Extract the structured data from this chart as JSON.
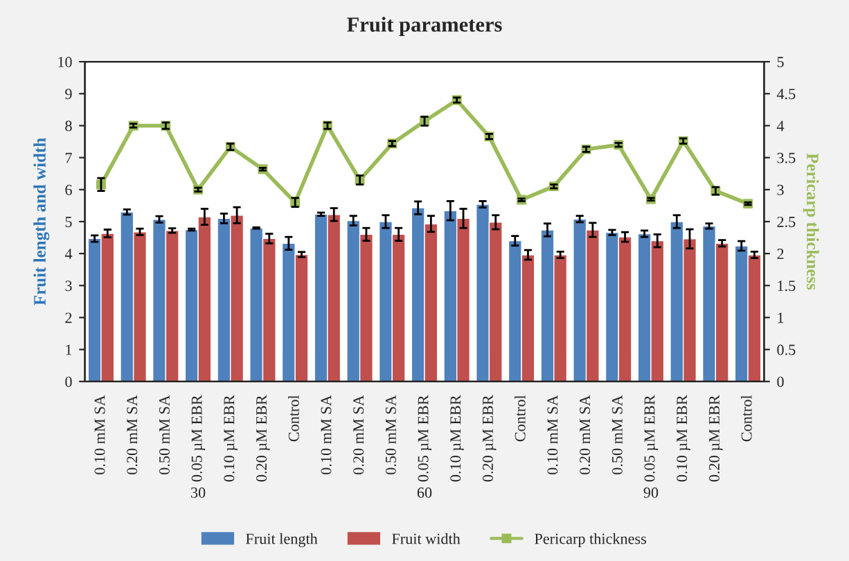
{
  "chart_data": {
    "type": "bar",
    "title": "Fruit parameters",
    "ylabel": "Fruit length and width",
    "y2label": "Pericarp thickness",
    "categories": [
      "0.10 mM SA",
      "0.20 mM SA",
      "0.50 mM SA",
      "0.05 µM EBR",
      "0.10 µM EBR",
      "0.20 µM EBR",
      "Control",
      "0.10 mM SA",
      "0.20 mM SA",
      "0.50 mM SA",
      "0.05 µM EBR",
      "0.10 µM EBR",
      "0.20 µM EBR",
      "Control",
      "0.10 mM SA",
      "0.20 mM SA",
      "0.50 mM SA",
      "0.05 µM EBR",
      "0.10 µM EBR",
      "0.20 µM EBR",
      "Control"
    ],
    "annotations": [
      "30",
      "60",
      "90"
    ],
    "series": [
      {
        "name": "Fruit length",
        "color": "#4f81bd",
        "values": [
          4.47,
          5.3,
          5.07,
          4.75,
          5.1,
          4.8,
          4.32,
          5.23,
          5.03,
          5.0,
          5.43,
          5.34,
          5.54,
          4.4,
          4.74,
          5.08,
          4.66,
          4.62,
          5.0,
          4.86,
          4.24
        ],
        "errors": [
          0.1,
          0.08,
          0.1,
          0.03,
          0.15,
          0.02,
          0.2,
          0.05,
          0.15,
          0.2,
          0.2,
          0.3,
          0.1,
          0.15,
          0.2,
          0.1,
          0.08,
          0.1,
          0.2,
          0.08,
          0.15
        ]
      },
      {
        "name": "Fruit width",
        "color": "#c0504d",
        "values": [
          4.63,
          4.68,
          4.72,
          5.15,
          5.2,
          4.47,
          3.97,
          5.22,
          4.6,
          4.6,
          4.93,
          5.1,
          4.98,
          3.96,
          3.96,
          4.74,
          4.52,
          4.4,
          4.46,
          4.32,
          3.96
        ],
        "errors": [
          0.12,
          0.1,
          0.07,
          0.25,
          0.25,
          0.15,
          0.08,
          0.2,
          0.2,
          0.2,
          0.25,
          0.3,
          0.22,
          0.15,
          0.1,
          0.22,
          0.15,
          0.2,
          0.3,
          0.1,
          0.1
        ]
      },
      {
        "name": "Pericarp thickness",
        "type": "line",
        "axis": "y2",
        "color": "#9bbb59",
        "values": [
          3.08,
          4.0,
          4.0,
          3.0,
          3.67,
          3.32,
          2.8,
          4.0,
          3.15,
          3.72,
          4.07,
          4.4,
          3.83,
          2.84,
          3.05,
          3.63,
          3.7,
          2.85,
          3.76,
          2.98,
          2.78
        ],
        "errors": [
          0.1,
          0.03,
          0.05,
          0.03,
          0.05,
          0.02,
          0.07,
          0.05,
          0.07,
          0.04,
          0.07,
          0.04,
          0.04,
          0.02,
          0.03,
          0.04,
          0.03,
          0.02,
          0.04,
          0.06,
          0.02
        ]
      }
    ],
    "ylim": [
      0,
      10
    ],
    "yticks": [
      0,
      1,
      2,
      3,
      4,
      5,
      6,
      7,
      8,
      9,
      10
    ],
    "y2lim": [
      0,
      5
    ],
    "y2ticks": [
      0,
      0.5,
      1,
      1.5,
      2,
      2.5,
      3,
      3.5,
      4,
      4.5,
      5
    ],
    "marker": "square",
    "line_style": "solid",
    "grid": false,
    "legend": "bottom"
  }
}
